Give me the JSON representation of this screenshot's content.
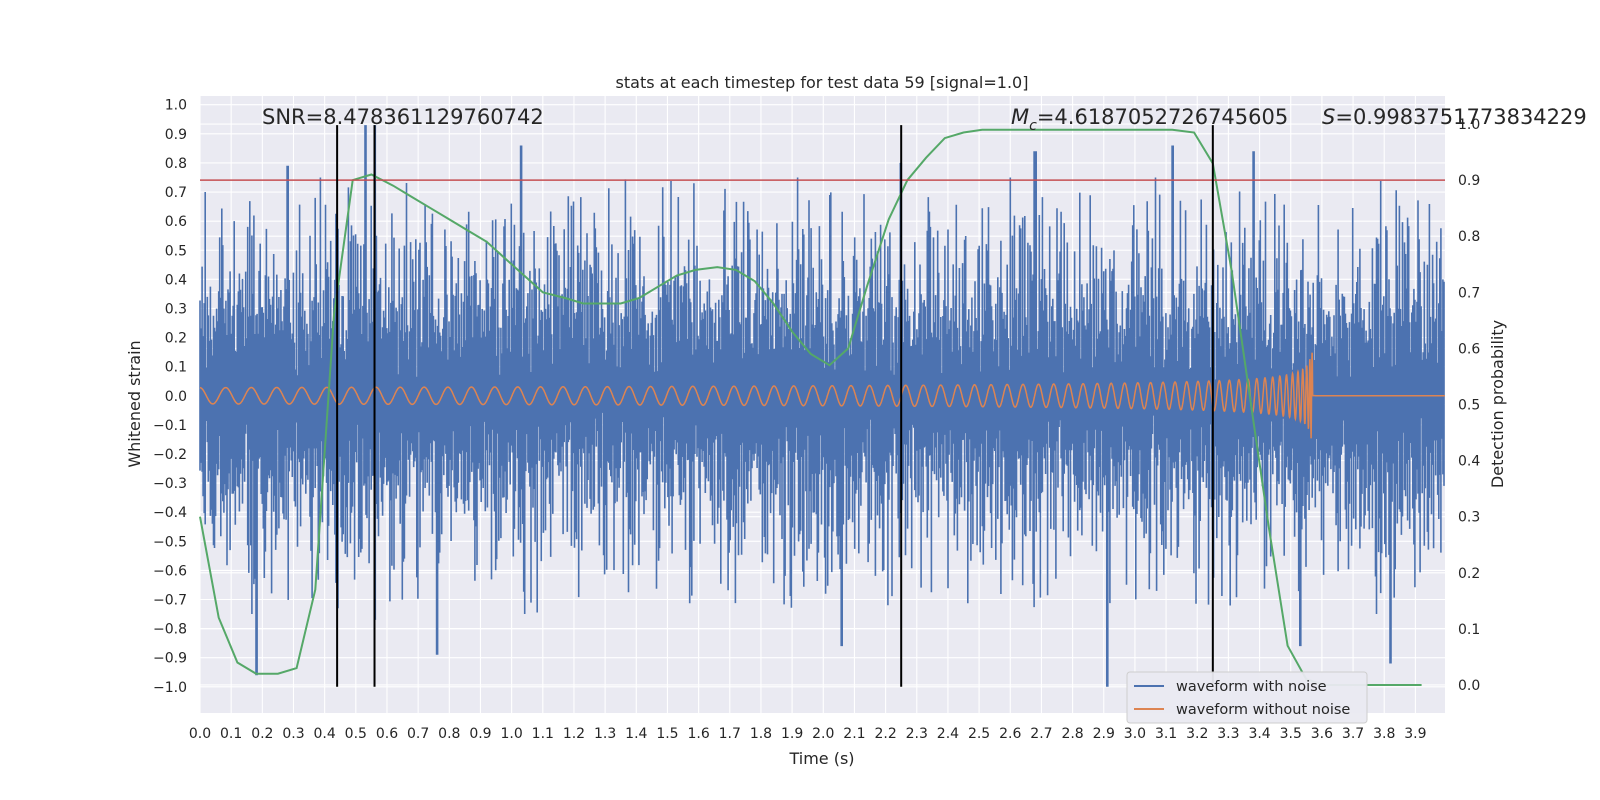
{
  "chart_data": {
    "type": "line",
    "title": "stats at each timestep for test data 59 [signal=1.0]",
    "xlabel": "Time (s)",
    "ylabel": "Whitened strain",
    "y2label": "Detection probability",
    "xlim": [
      0.0,
      3.995
    ],
    "ylim": [
      -1.09,
      1.03
    ],
    "y2lim": [
      -0.05,
      1.05
    ],
    "grid": true,
    "x_ticks": [
      "0.0",
      "0.1",
      "0.2",
      "0.3",
      "0.4",
      "0.5",
      "0.6",
      "0.7",
      "0.8",
      "0.9",
      "1.0",
      "1.1",
      "1.2",
      "1.3",
      "1.4",
      "1.5",
      "1.6",
      "1.7",
      "1.8",
      "1.9",
      "2.0",
      "2.1",
      "2.2",
      "2.3",
      "2.4",
      "2.5",
      "2.6",
      "2.7",
      "2.8",
      "2.9",
      "3.0",
      "3.1",
      "3.2",
      "3.3",
      "3.4",
      "3.5",
      "3.6",
      "3.7",
      "3.8",
      "3.9"
    ],
    "y_ticks": [
      "1.0",
      "0.9",
      "0.8",
      "0.7",
      "0.6",
      "0.5",
      "0.4",
      "0.3",
      "0.2",
      "0.1",
      "0.0",
      "-0.1",
      "-0.2",
      "-0.3",
      "-0.4",
      "-0.5",
      "-0.6",
      "-0.7",
      "-0.8",
      "-0.9",
      "-1.0"
    ],
    "y2_ticks": [
      "1.0",
      "0.9",
      "0.8",
      "0.7",
      "0.6",
      "0.5",
      "0.4",
      "0.3",
      "0.2",
      "0.1",
      "0.0"
    ],
    "threshold": {
      "value": 0.9,
      "axis": "y2",
      "color": "#c44e52"
    },
    "vlines": [
      0.44,
      0.56,
      2.25,
      3.25
    ],
    "vline_range": [
      -1.0,
      0.93
    ],
    "annotations": {
      "snr": "SNR=8.478361129760742",
      "mc_symbol": "M",
      "mc_sub": "c",
      "mc_value": "=4.6187052726745605",
      "s_symbol": "S",
      "s_value": "=0.9983751773834229"
    },
    "series": [
      {
        "name": "waveform with noise",
        "color": "#4c72b0",
        "axis": "y",
        "description": "whitened noisy strain, roughly uniform amplitude ~0.4-0.6 with spikes near 0.93 and -1.0"
      },
      {
        "name": "waveform without noise",
        "color": "#dd8452",
        "axis": "y",
        "description": "chirp signal with amplitude growing from 0.03 to 0.17, merging at 3.57 s then flat 0"
      },
      {
        "name": "detection probability",
        "color": "#55a868",
        "axis": "y2",
        "x": [
          0.0,
          0.06,
          0.12,
          0.18,
          0.25,
          0.31,
          0.37,
          0.43,
          0.49,
          0.55,
          0.62,
          0.68,
          0.74,
          0.8,
          0.86,
          0.92,
          0.98,
          1.04,
          1.1,
          1.17,
          1.23,
          1.29,
          1.35,
          1.41,
          1.47,
          1.53,
          1.59,
          1.66,
          1.72,
          1.78,
          1.84,
          1.9,
          1.96,
          2.02,
          2.08,
          2.14,
          2.21,
          2.27,
          2.33,
          2.39,
          2.45,
          2.51,
          2.57,
          2.63,
          2.7,
          2.76,
          2.82,
          2.88,
          2.94,
          3.0,
          3.06,
          3.12,
          3.19,
          3.25,
          3.31,
          3.37,
          3.43,
          3.49,
          3.55,
          3.61,
          3.68,
          3.74,
          3.8,
          3.86,
          3.92
        ],
        "values": [
          0.3,
          0.12,
          0.04,
          0.02,
          0.02,
          0.03,
          0.17,
          0.66,
          0.9,
          0.91,
          0.89,
          0.87,
          0.85,
          0.83,
          0.81,
          0.79,
          0.76,
          0.73,
          0.7,
          0.69,
          0.68,
          0.68,
          0.68,
          0.69,
          0.71,
          0.73,
          0.74,
          0.745,
          0.74,
          0.72,
          0.68,
          0.63,
          0.59,
          0.57,
          0.6,
          0.71,
          0.83,
          0.9,
          0.94,
          0.975,
          0.985,
          0.99,
          0.99,
          0.99,
          0.99,
          0.99,
          0.99,
          0.99,
          0.99,
          0.99,
          0.99,
          0.99,
          0.985,
          0.93,
          0.74,
          0.51,
          0.28,
          0.07,
          0.01,
          0.0,
          0.0,
          0.0,
          0.0,
          0.0,
          0.0
        ]
      }
    ],
    "legend": {
      "placement": "lower-right",
      "entries": [
        "waveform with noise",
        "waveform without noise"
      ]
    }
  }
}
